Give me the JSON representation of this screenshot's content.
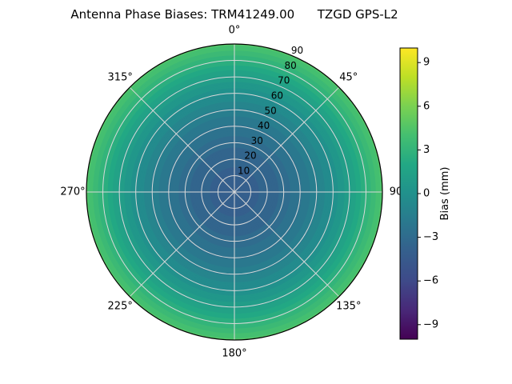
{
  "chart_data": {
    "type": "heatmap",
    "subtype": "polar-contour",
    "title": "Antenna Phase Biases: TRM41249.00      TZGD GPS-L2",
    "theta_labels": [
      {
        "angle": 0,
        "label": "0°"
      },
      {
        "angle": 45,
        "label": "45°"
      },
      {
        "angle": 90,
        "label": "90"
      },
      {
        "angle": 135,
        "label": "135°"
      },
      {
        "angle": 180,
        "label": "180°"
      },
      {
        "angle": 225,
        "label": "225°"
      },
      {
        "angle": 270,
        "label": "270°"
      },
      {
        "angle": 315,
        "label": "315°"
      }
    ],
    "radial_ticks": {
      "angle_deg": 24,
      "values": [
        10,
        20,
        30,
        40,
        50,
        60,
        70,
        80,
        90
      ]
    },
    "radial_range": [
      0,
      90
    ],
    "profile": {
      "zenith_deg": [
        0,
        10,
        20,
        30,
        40,
        50,
        60,
        70,
        80,
        90
      ],
      "bias_mm": [
        -4.0,
        -3.9,
        -3.6,
        -3.1,
        -2.3,
        -1.4,
        -0.2,
        1.1,
        2.7,
        4.5
      ]
    },
    "colorbar": {
      "label": "Bias (mm)",
      "ticks": [
        9,
        6,
        3,
        0,
        -3,
        -6,
        -9
      ],
      "vmin": -10,
      "vmax": 10
    },
    "colormap": "viridis",
    "colormap_stops": [
      "#440154",
      "#482878",
      "#3e4a89",
      "#355f8d",
      "#2a788e",
      "#21918c",
      "#22a884",
      "#44bf70",
      "#7ad151",
      "#bddf26",
      "#fde725"
    ],
    "grid_color": "#d9d9d9",
    "outline_color": "#000000",
    "background": "#ffffff"
  }
}
